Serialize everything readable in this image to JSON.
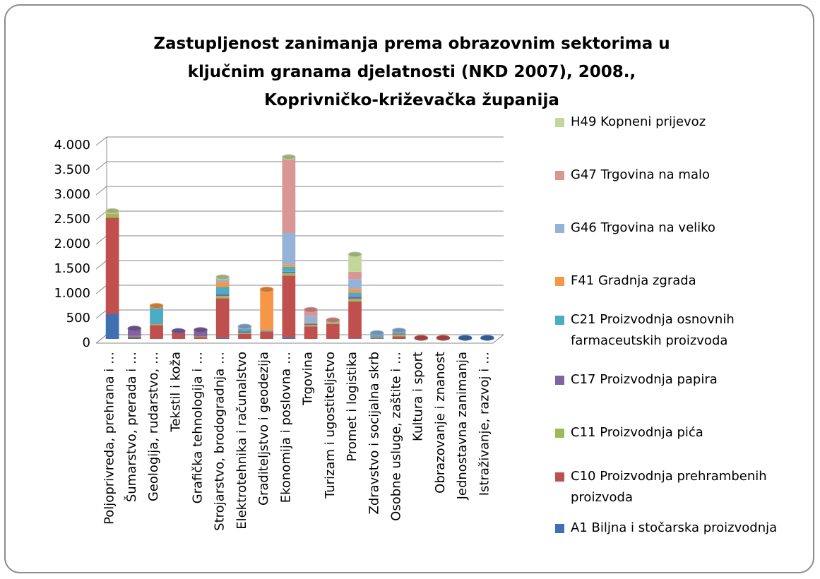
{
  "chart_data": {
    "type": "bar",
    "stacked": true,
    "title": "Zastupljenost zanimanja prema obrazovnim sektorima u ključnim granama djelatnosti (NKD 2007), 2008., Koprivničko-križevačka županija",
    "categories": [
      "Poljoprivreda, prehrana i …",
      "Šumarstvo, prerada i …",
      "Geologija, rudarstvo, …",
      "Tekstil i koža",
      "Grafička tehnologija i …",
      "Strojarstvo, brodogradnja …",
      "Elektrotehnika i računalstvo",
      "Graditeljstvo i geodezija",
      "Ekonomija i poslovna …",
      "Trgovina",
      "Turizam i ugostiteljstvo",
      "Promet i logistika",
      "Zdravstvo i socijalna skrb",
      "Osobne usluge, zaštite i …",
      "Kultura i sport",
      "Obrazovanje i znanost",
      "Jednostavna zanimanja",
      "Istraživanje, razvoj i …"
    ],
    "series": [
      {
        "name": "A1 Biljna i stočarska proizvodnja",
        "color": "#3f70b2",
        "values": [
          500,
          30,
          0,
          0,
          0,
          20,
          0,
          0,
          30,
          0,
          0,
          10,
          10,
          0,
          0,
          0,
          20,
          20
        ]
      },
      {
        "name": "C10 Proizvodnja prehrambenih proizvoda",
        "color": "#c0504d",
        "values": [
          1950,
          20,
          280,
          130,
          40,
          800,
          100,
          150,
          1250,
          250,
          300,
          750,
          20,
          50,
          20,
          20,
          0,
          0
        ]
      },
      {
        "name": "C11 Proizvodnja pića",
        "color": "#9bbb59",
        "values": [
          80,
          10,
          20,
          10,
          10,
          50,
          20,
          10,
          50,
          30,
          40,
          50,
          10,
          40,
          0,
          0,
          0,
          0
        ]
      },
      {
        "name": "C17 Proizvodnja papira",
        "color": "#8064a2",
        "values": [
          0,
          150,
          10,
          20,
          130,
          30,
          30,
          0,
          30,
          20,
          10,
          50,
          0,
          20,
          0,
          0,
          0,
          0
        ]
      },
      {
        "name": "C21 Proizvodnja osnovnih farmaceutskih proizvoda",
        "color": "#4bacc6",
        "values": [
          0,
          0,
          350,
          0,
          0,
          150,
          50,
          20,
          100,
          20,
          0,
          80,
          70,
          40,
          0,
          0,
          0,
          0
        ]
      },
      {
        "name": "F41 Gradnja zgrada",
        "color": "#f79646",
        "values": [
          10,
          0,
          10,
          0,
          0,
          100,
          20,
          820,
          50,
          20,
          10,
          70,
          0,
          0,
          0,
          0,
          0,
          0
        ]
      },
      {
        "name": "G46 Trgovina na veliko",
        "color": "#95b3d7",
        "values": [
          10,
          0,
          0,
          0,
          0,
          50,
          30,
          0,
          640,
          120,
          0,
          200,
          10,
          20,
          0,
          0,
          0,
          0
        ]
      },
      {
        "name": "G47 Trgovina na malo",
        "color": "#d99694",
        "values": [
          20,
          0,
          0,
          0,
          0,
          20,
          0,
          0,
          1500,
          130,
          20,
          150,
          0,
          0,
          0,
          0,
          0,
          0
        ]
      },
      {
        "name": "H49 Kopneni prijevoz",
        "color": "#c3d69b",
        "values": [
          20,
          0,
          0,
          0,
          0,
          30,
          0,
          0,
          30,
          0,
          0,
          350,
          0,
          0,
          0,
          0,
          0,
          0
        ]
      }
    ],
    "ylim": [
      0,
      4000
    ],
    "yticks": [
      0,
      500,
      {
        "value": 1000,
        "label": "1.000"
      },
      {
        "value": 1500,
        "label": "1.500"
      },
      {
        "value": 2000,
        "label": "2.000"
      },
      {
        "value": 2500,
        "label": "2.500"
      },
      {
        "value": 3000,
        "label": "3.000"
      },
      {
        "value": 3500,
        "label": "3.500"
      },
      {
        "value": 4000,
        "label": "4.000"
      }
    ],
    "grid": true,
    "legend": "right"
  }
}
